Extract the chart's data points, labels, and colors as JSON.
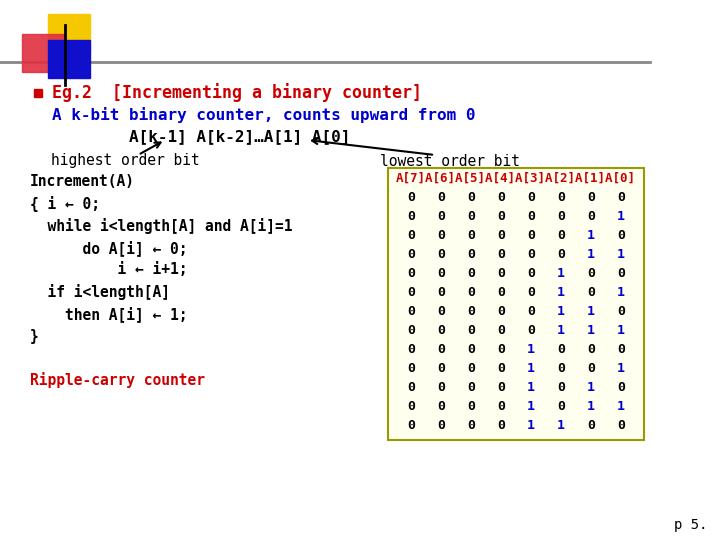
{
  "bg_color": "#ffffff",
  "title_text": "Eg.2  [Incrementing a binary counter]",
  "title_color": "#cc0000",
  "subtitle_text": "A k-bit binary counter, counts upward from 0",
  "subtitle_color": "#0000cc",
  "array_label": "A[k-1] A[k-2]…A[1] A[0]",
  "array_label_color": "#000000",
  "highest_label": "highest order bit",
  "lowest_label": "lowest order bit",
  "code_lines": [
    "Increment(A)",
    "{ i ← 0;",
    "  while i<length[A] and A[i]=1",
    "      do A[i] ← 0;",
    "          i ← i+1;",
    "  if i<length[A]",
    "    then A[i] ← 1;",
    "}",
    "",
    "Ripple-carry counter"
  ],
  "code_colors": [
    "#000000",
    "#000000",
    "#000000",
    "#000000",
    "#000000",
    "#000000",
    "#000000",
    "#000000",
    "#000000",
    "#cc0000"
  ],
  "table_header": "A[7]A[6]A[5]A[4]A[3]A[2]A[1]A[0]",
  "table_header_color": "#cc0000",
  "table_bg": "#fffff0",
  "table_border": "#999900",
  "table_data": [
    [
      0,
      0,
      0,
      0,
      0,
      0,
      0,
      0
    ],
    [
      0,
      0,
      0,
      0,
      0,
      0,
      0,
      1
    ],
    [
      0,
      0,
      0,
      0,
      0,
      0,
      1,
      0
    ],
    [
      0,
      0,
      0,
      0,
      0,
      0,
      1,
      1
    ],
    [
      0,
      0,
      0,
      0,
      0,
      1,
      0,
      0
    ],
    [
      0,
      0,
      0,
      0,
      0,
      1,
      0,
      1
    ],
    [
      0,
      0,
      0,
      0,
      0,
      1,
      1,
      0
    ],
    [
      0,
      0,
      0,
      0,
      0,
      1,
      1,
      1
    ],
    [
      0,
      0,
      0,
      0,
      1,
      0,
      0,
      0
    ],
    [
      0,
      0,
      0,
      0,
      1,
      0,
      0,
      1
    ],
    [
      0,
      0,
      0,
      0,
      1,
      0,
      1,
      0
    ],
    [
      0,
      0,
      0,
      0,
      1,
      0,
      1,
      1
    ],
    [
      0,
      0,
      0,
      0,
      1,
      1,
      0,
      0
    ]
  ],
  "zero_color": "#000000",
  "one_color": "#0000cc",
  "page_num": "p 5.",
  "logo_yellow": "#f5c800",
  "logo_red": "#e03040",
  "logo_blue": "#1010cc",
  "line_color": "#888888"
}
